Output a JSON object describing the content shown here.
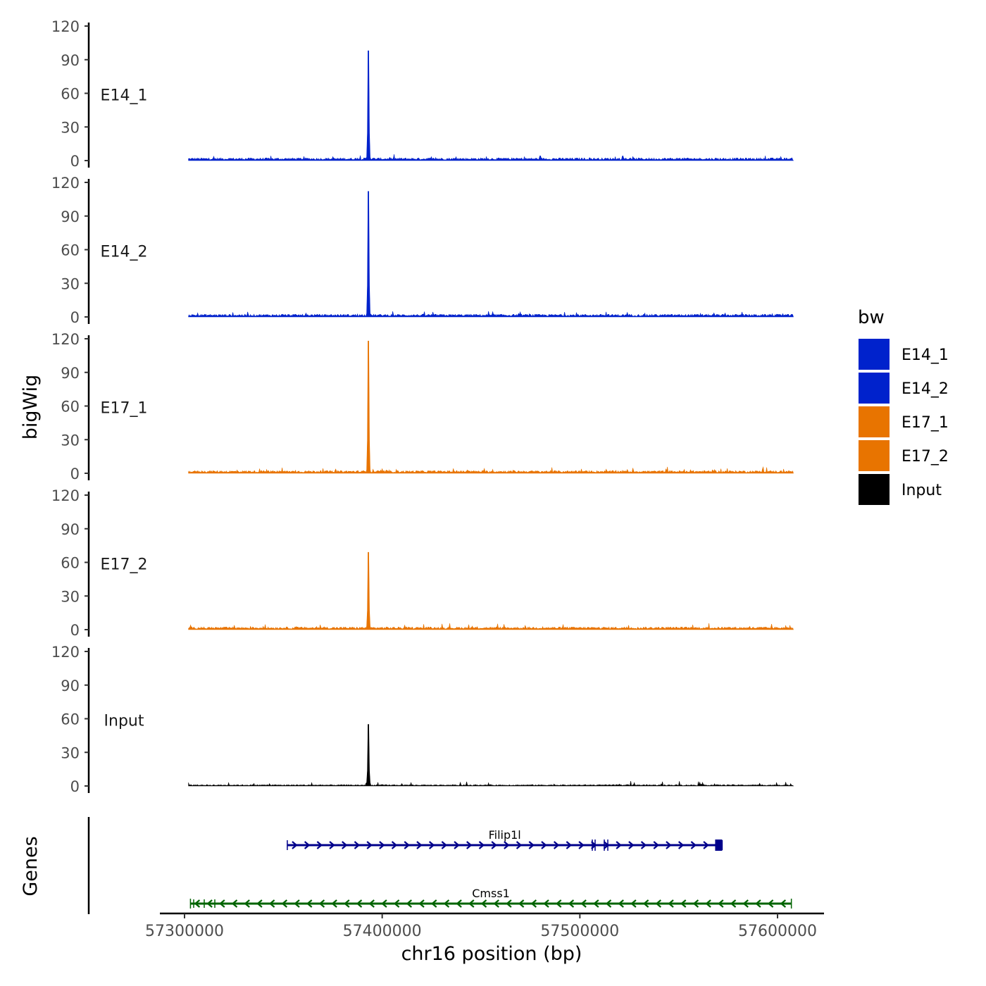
{
  "chart_data": {
    "type": "area",
    "ylabel": "bigWig",
    "xlabel": "chr16 position (bp)",
    "ylim": [
      0,
      120
    ],
    "yticks": [
      0,
      30,
      60,
      90,
      120
    ],
    "xlim": [
      57275000,
      57610000
    ],
    "xticks": [
      57300000,
      57400000,
      57500000,
      57600000
    ],
    "xtick_labels": [
      "57300000",
      "57400000",
      "57500000",
      "57600000"
    ],
    "signal_range": [
      57302000,
      57608000
    ],
    "legend": {
      "title": "bw",
      "position": "right",
      "items": [
        {
          "label": "E14_1",
          "color": "#0022CC"
        },
        {
          "label": "E14_2",
          "color": "#0022CC"
        },
        {
          "label": "E17_1",
          "color": "#E87400"
        },
        {
          "label": "E17_2",
          "color": "#E87400"
        },
        {
          "label": "Input",
          "color": "#000000"
        }
      ]
    },
    "series": [
      {
        "name": "E14_1",
        "color": "#0022CC",
        "peak_position": 57393000,
        "peak_value": 98,
        "baseline": 2
      },
      {
        "name": "E14_2",
        "color": "#0022CC",
        "peak_position": 57393000,
        "peak_value": 112,
        "baseline": 2
      },
      {
        "name": "E17_1",
        "color": "#E87400",
        "peak_position": 57393000,
        "peak_value": 118,
        "baseline": 2
      },
      {
        "name": "E17_2",
        "color": "#E87400",
        "peak_position": 57393000,
        "peak_value": 69,
        "baseline": 2
      },
      {
        "name": "Input",
        "color": "#000000",
        "peak_position": 57393000,
        "peak_value": 55,
        "baseline": 1
      }
    ],
    "genes_track": {
      "label": "Genes",
      "genes": [
        {
          "name": "Filip1l",
          "start": 57352000,
          "end": 57572000,
          "strand": "+",
          "color": "#00008B"
        },
        {
          "name": "Cmss1",
          "start": 57303000,
          "end": 57607000,
          "strand": "-",
          "color": "#006400"
        }
      ]
    }
  }
}
